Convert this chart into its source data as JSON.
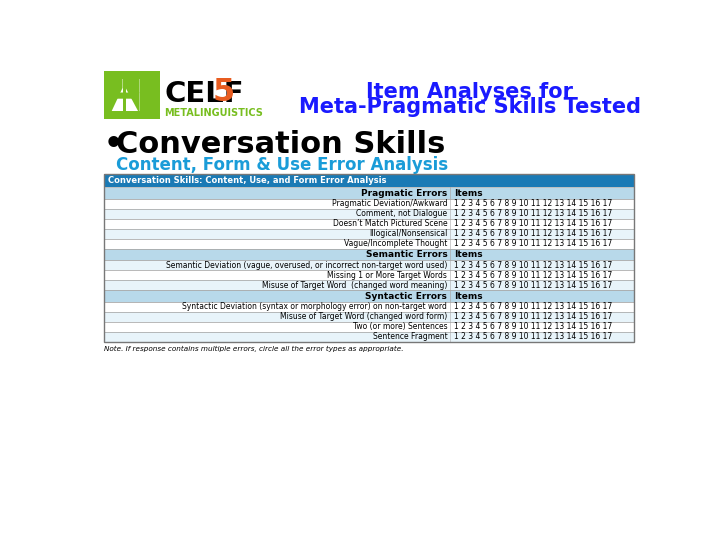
{
  "title_line1": "Item Analyses for",
  "title_line2": "Meta-Pragmatic Skills Tested",
  "title_color": "#1a1aff",
  "bullet_text": "Conversation Skills",
  "subtitle_text": "Content, Form & Use Error Analysis",
  "subtitle_color": "#1a9cd8",
  "table_header_bg": "#1a7ab5",
  "table_header_text": "Conversation Skills: Content, Use, and Form Error Analysis",
  "table_header_text_color": "#ffffff",
  "section_bg": "#b8d9ea",
  "row_bg_light": "#ffffff",
  "row_bg_alt": "#e8f4fa",
  "border_color": "#aaaaaa",
  "note_text": "Note. If response contains multiple errors, circle all the error types as appropriate.",
  "items_str": "1 2 3 4 5 6 7 8 9 10 11 12 13 14 15 16 17",
  "sections": [
    {
      "header": "Pragmatic Errors",
      "items_label": "Items",
      "rows": [
        "Pragmatic Deviation/Awkward",
        "Comment, not Dialogue",
        "Doesn’t Match Pictured Scene",
        "Illogical/Nonsensical",
        "Vague/Incomplete Thought"
      ]
    },
    {
      "header": "Semantic Errors",
      "items_label": "Items",
      "rows": [
        "Semantic Deviation (vague, overused, or incorrect non-target word used)",
        "Missing 1 or More Target Words",
        "Misuse of Target Word  (changed word meaning)"
      ]
    },
    {
      "header": "Syntactic Errors",
      "items_label": "Items",
      "rows": [
        "Syntactic Deviation (syntax or morphology error) on non-target word",
        "Misuse of Target Word (changed word form)",
        "Two (or more) Sentences",
        "Sentence Fragment"
      ]
    }
  ],
  "bg_color": "#ffffff",
  "logo_green": "#78be20",
  "celf_color": "#000000",
  "five_color": "#e85c20",
  "meta_color": "#78be20"
}
